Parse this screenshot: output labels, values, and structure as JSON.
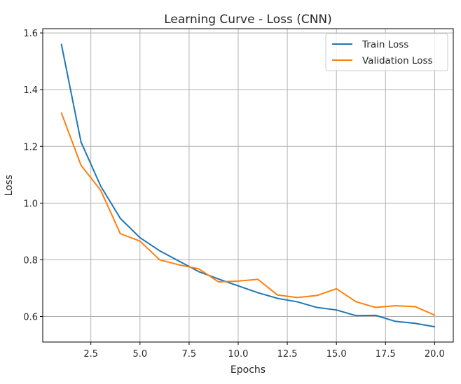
{
  "chart_data": {
    "type": "line",
    "title": "Learning Curve - Loss (CNN)",
    "xlabel": "Epochs",
    "ylabel": "Loss",
    "xlim": [
      0.05,
      20.95
    ],
    "ylim": [
      0.51,
      1.615
    ],
    "xticks": [
      2.5,
      5.0,
      7.5,
      10.0,
      12.5,
      15.0,
      17.5,
      20.0
    ],
    "xtick_labels": [
      "2.5",
      "5.0",
      "7.5",
      "10.0",
      "12.5",
      "15.0",
      "17.5",
      "20.0"
    ],
    "yticks": [
      0.6,
      0.8,
      1.0,
      1.2,
      1.4,
      1.6
    ],
    "ytick_labels": [
      "0.6",
      "0.8",
      "1.0",
      "1.2",
      "1.4",
      "1.6"
    ],
    "grid": true,
    "legend_position": "top-right",
    "x": [
      1,
      2,
      3,
      4,
      5,
      6,
      7,
      8,
      9,
      10,
      11,
      12,
      13,
      14,
      15,
      16,
      17,
      18,
      19,
      20
    ],
    "series": [
      {
        "name": "Train Loss",
        "color": "#1f77b4",
        "values": [
          1.56,
          1.215,
          1.06,
          0.946,
          0.878,
          0.832,
          0.795,
          0.758,
          0.732,
          0.708,
          0.684,
          0.664,
          0.652,
          0.632,
          0.623,
          0.603,
          0.604,
          0.583,
          0.576,
          0.564
        ]
      },
      {
        "name": "Validation Loss",
        "color": "#ff7f0e",
        "values": [
          1.318,
          1.133,
          1.045,
          0.892,
          0.866,
          0.8,
          0.782,
          0.768,
          0.722,
          0.725,
          0.731,
          0.676,
          0.667,
          0.674,
          0.698,
          0.652,
          0.632,
          0.638,
          0.635,
          0.605
        ]
      }
    ]
  }
}
